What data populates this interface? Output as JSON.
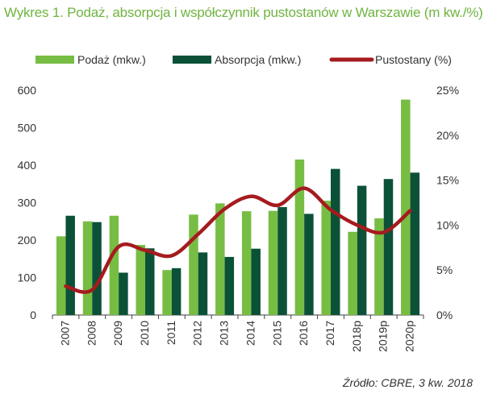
{
  "title": "Wykres 1. Podaż, absorpcja i współczynnik pustostanów w Warszawie (m kw./%)",
  "source": "Źródło: CBRE, 3 kw. 2018",
  "chart_data": {
    "type": "bar",
    "categories": [
      "2007",
      "2008",
      "2009",
      "2010",
      "2011",
      "2012",
      "2013",
      "2014",
      "2015",
      "2016",
      "2017",
      "2018p",
      "2019p",
      "2020p"
    ],
    "series": [
      {
        "name": "Podaż (mkw.)",
        "type": "bar",
        "axis": "left",
        "color": "#77bd43",
        "values": [
          210,
          250,
          265,
          187,
          120,
          268,
          298,
          277,
          278,
          415,
          305,
          222,
          258,
          575
        ]
      },
      {
        "name": "Absorpcja (mkw.)",
        "type": "bar",
        "axis": "left",
        "color": "#0b5137",
        "values": [
          265,
          248,
          113,
          178,
          125,
          167,
          155,
          177,
          288,
          270,
          390,
          345,
          363,
          380
        ]
      },
      {
        "name": "Pustostany (%)",
        "type": "line",
        "axis": "right",
        "color": "#a51b1e",
        "values": [
          3.2,
          2.8,
          7.6,
          7.2,
          6.6,
          9.0,
          11.8,
          13.2,
          12.2,
          14.1,
          11.7,
          10.0,
          9.2,
          11.6
        ]
      }
    ],
    "y_left": {
      "ylim": [
        0,
        600
      ],
      "ticks": [
        0,
        100,
        200,
        300,
        400,
        500,
        600
      ],
      "tick_labels": [
        "0",
        "100",
        "200",
        "300",
        "400",
        "500",
        "600"
      ]
    },
    "y_right": {
      "ylim": [
        0,
        25
      ],
      "ticks": [
        0,
        5,
        10,
        15,
        20,
        25
      ],
      "tick_labels": [
        "0%",
        "5%",
        "10%",
        "15%",
        "20%",
        "25%"
      ]
    },
    "grid": false,
    "legend_position": "top",
    "xlabel": "",
    "ylabel": ""
  }
}
